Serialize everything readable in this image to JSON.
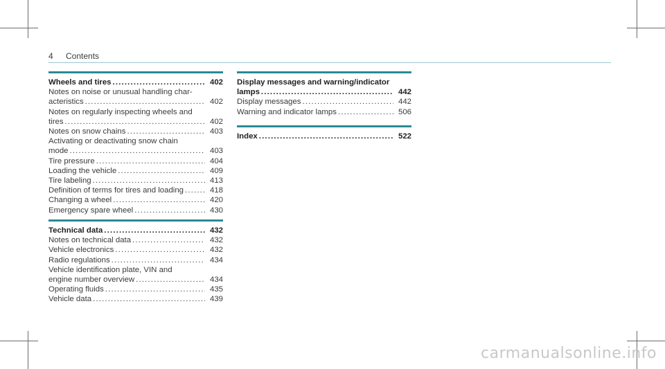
{
  "header": {
    "page_number": "4",
    "title": "Contents"
  },
  "sections": {
    "wheels": {
      "title": "Wheels and tires",
      "page": "402",
      "e1_a": "Notes on noise or unusual handling char-",
      "e1_b": "acteristics",
      "e1_p": "402",
      "e2_a": "Notes on regularly inspecting wheels and",
      "e2_b": "tires",
      "e2_p": "402",
      "e3": "Notes on snow chains",
      "e3_p": "403",
      "e4_a": "Activating or deactivating snow chain",
      "e4_b": "mode",
      "e4_p": "403",
      "e5": "Tire pressure",
      "e5_p": "404",
      "e6": "Loading the vehicle",
      "e6_p": "409",
      "e7": "Tire labeling",
      "e7_p": "413",
      "e8": "Definition of terms for tires and loading",
      "e8_p": "418",
      "e9": "Changing a wheel",
      "e9_p": "420",
      "e10": "Emergency spare wheel",
      "e10_p": "430"
    },
    "technical": {
      "title": "Technical data",
      "page": "432",
      "e1": "Notes on technical data",
      "e1_p": "432",
      "e2": "Vehicle electronics",
      "e2_p": "432",
      "e3": "Radio regulations",
      "e3_p": "434",
      "e4_a": "Vehicle identification plate, VIN and",
      "e4_b": "engine number overview",
      "e4_p": "434",
      "e5": "Operating fluids",
      "e5_p": "435",
      "e6": "Vehicle data",
      "e6_p": "439"
    },
    "display": {
      "title_a": "Display messages and warning/indicator",
      "title_b": "lamps",
      "page": "442",
      "e1": "Display messages",
      "e1_p": "442",
      "e2": "Warning and indicator lamps",
      "e2_p": "506"
    },
    "index": {
      "title": "Index",
      "page": "522"
    }
  },
  "watermark": "carmanualsonline.info"
}
